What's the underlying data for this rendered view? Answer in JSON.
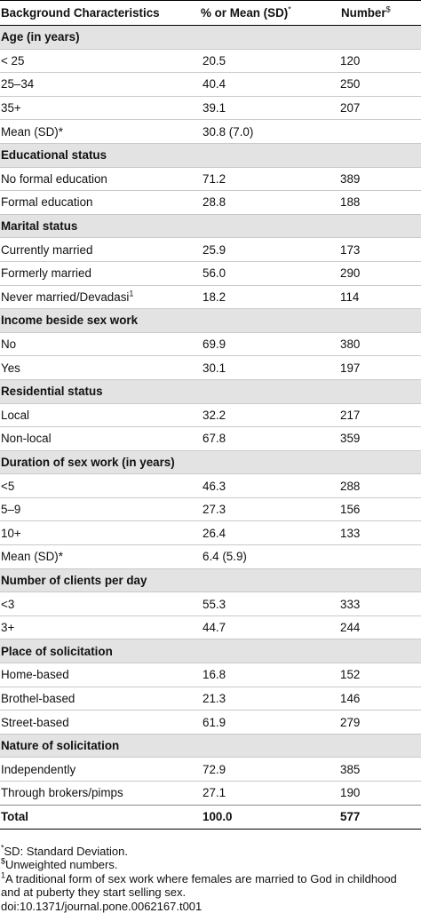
{
  "header": {
    "col1": "Background Characteristics",
    "col2": "% or Mean (SD)",
    "col2_mark": "*",
    "col3": "Number",
    "col3_mark": "$"
  },
  "sections": [
    {
      "title": "Age (in years)",
      "rows": [
        {
          "label": "< 25",
          "value": "20.5",
          "number": "120"
        },
        {
          "label": "25–34",
          "value": "40.4",
          "number": "250"
        },
        {
          "label": "35+",
          "value": "39.1",
          "number": "207"
        },
        {
          "label": "Mean (SD)*",
          "value": "30.8 (7.0)",
          "number": ""
        }
      ]
    },
    {
      "title": "Educational status",
      "rows": [
        {
          "label": "No formal education",
          "value": "71.2",
          "number": "389"
        },
        {
          "label": "Formal education",
          "value": "28.8",
          "number": "188"
        }
      ]
    },
    {
      "title": "Marital status",
      "rows": [
        {
          "label": "Currently married",
          "value": "25.9",
          "number": "173"
        },
        {
          "label": "Formerly married",
          "value": "56.0",
          "number": "290"
        },
        {
          "label": "Never married/Devadasi",
          "label_mark": "1",
          "value": "18.2",
          "number": "114"
        }
      ]
    },
    {
      "title": "Income beside sex work",
      "rows": [
        {
          "label": "No",
          "value": "69.9",
          "number": "380"
        },
        {
          "label": "Yes",
          "value": "30.1",
          "number": "197"
        }
      ]
    },
    {
      "title": "Residential status",
      "rows": [
        {
          "label": "Local",
          "value": "32.2",
          "number": "217"
        },
        {
          "label": "Non-local",
          "value": "67.8",
          "number": "359"
        }
      ]
    },
    {
      "title": "Duration of sex work (in years)",
      "rows": [
        {
          "label": "<5",
          "value": "46.3",
          "number": "288"
        },
        {
          "label": "5–9",
          "value": "27.3",
          "number": "156"
        },
        {
          "label": "10+",
          "value": "26.4",
          "number": "133"
        },
        {
          "label": "Mean (SD)*",
          "value": "6.4 (5.9)",
          "number": ""
        }
      ]
    },
    {
      "title": "Number of clients per day",
      "rows": [
        {
          "label": "<3",
          "value": "55.3",
          "number": "333"
        },
        {
          "label": "3+",
          "value": "44.7",
          "number": "244"
        }
      ]
    },
    {
      "title": "Place of solicitation",
      "rows": [
        {
          "label": "Home-based",
          "value": "16.8",
          "number": "152"
        },
        {
          "label": "Brothel-based",
          "value": "21.3",
          "number": "146"
        },
        {
          "label": "Street-based",
          "value": "61.9",
          "number": "279"
        }
      ]
    },
    {
      "title": "Nature of solicitation",
      "rows": [
        {
          "label": "Independently",
          "value": "72.9",
          "number": "385"
        },
        {
          "label": "Through brokers/pimps",
          "value": "27.1",
          "number": "190"
        }
      ]
    }
  ],
  "total": {
    "label": "Total",
    "value": "100.0",
    "number": "577"
  },
  "footnotes": [
    {
      "mark": "*",
      "text": "SD: Standard Deviation."
    },
    {
      "mark": "$",
      "text": "Unweighted numbers."
    },
    {
      "mark": "1",
      "text": "A traditional form of sex work where females are married to God in childhood"
    },
    {
      "mark": "",
      "text": "and at puberty they start selling sex."
    },
    {
      "mark": "",
      "text": "doi:10.1371/journal.pone.0062167.t001"
    }
  ]
}
